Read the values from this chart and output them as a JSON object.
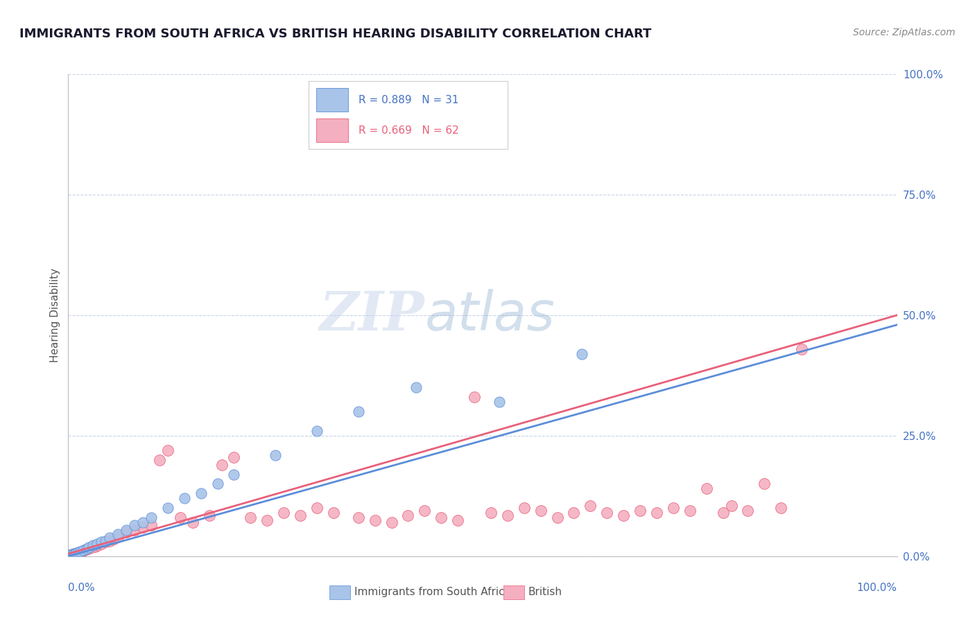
{
  "title": "IMMIGRANTS FROM SOUTH AFRICA VS BRITISH HEARING DISABILITY CORRELATION CHART",
  "source": "Source: ZipAtlas.com",
  "ylabel": "Hearing Disability",
  "yaxis_values": [
    0,
    25,
    50,
    75,
    100
  ],
  "legend_blue_r": "R = 0.889",
  "legend_blue_n": "N = 31",
  "legend_pink_r": "R = 0.669",
  "legend_pink_n": "N = 62",
  "blue_color": "#a8c4e8",
  "pink_color": "#f4afc0",
  "blue_line_color": "#5b8dd9",
  "pink_line_color": "#e8607a",
  "blue_scatter": [
    [
      0.2,
      0.3
    ],
    [
      0.4,
      0.4
    ],
    [
      0.6,
      0.5
    ],
    [
      0.8,
      0.6
    ],
    [
      1.0,
      0.7
    ],
    [
      1.2,
      0.8
    ],
    [
      1.5,
      1.0
    ],
    [
      1.8,
      1.2
    ],
    [
      2.2,
      1.5
    ],
    [
      2.5,
      1.8
    ],
    [
      3.0,
      2.2
    ],
    [
      3.5,
      2.5
    ],
    [
      4.0,
      3.0
    ],
    [
      4.5,
      3.2
    ],
    [
      5.0,
      3.8
    ],
    [
      6.0,
      4.5
    ],
    [
      7.0,
      5.5
    ],
    [
      8.0,
      6.5
    ],
    [
      9.0,
      7.0
    ],
    [
      10.0,
      8.0
    ],
    [
      12.0,
      10.0
    ],
    [
      14.0,
      12.0
    ],
    [
      16.0,
      13.0
    ],
    [
      18.0,
      15.0
    ],
    [
      20.0,
      17.0
    ],
    [
      25.0,
      21.0
    ],
    [
      30.0,
      26.0
    ],
    [
      35.0,
      30.0
    ],
    [
      42.0,
      35.0
    ],
    [
      52.0,
      32.0
    ],
    [
      62.0,
      42.0
    ]
  ],
  "pink_scatter": [
    [
      0.2,
      0.2
    ],
    [
      0.4,
      0.3
    ],
    [
      0.6,
      0.4
    ],
    [
      0.8,
      0.5
    ],
    [
      1.0,
      0.6
    ],
    [
      1.3,
      0.8
    ],
    [
      1.6,
      1.0
    ],
    [
      2.0,
      1.2
    ],
    [
      2.4,
      1.5
    ],
    [
      2.8,
      1.8
    ],
    [
      3.2,
      2.0
    ],
    [
      3.6,
      2.2
    ],
    [
      4.0,
      2.5
    ],
    [
      4.5,
      3.0
    ],
    [
      5.0,
      3.2
    ],
    [
      5.5,
      3.5
    ],
    [
      6.0,
      4.0
    ],
    [
      7.0,
      5.0
    ],
    [
      8.0,
      5.5
    ],
    [
      9.0,
      6.0
    ],
    [
      10.0,
      6.5
    ],
    [
      11.0,
      20.0
    ],
    [
      12.0,
      22.0
    ],
    [
      13.5,
      8.0
    ],
    [
      15.0,
      7.0
    ],
    [
      17.0,
      8.5
    ],
    [
      18.5,
      19.0
    ],
    [
      20.0,
      20.5
    ],
    [
      22.0,
      8.0
    ],
    [
      24.0,
      7.5
    ],
    [
      26.0,
      9.0
    ],
    [
      28.0,
      8.5
    ],
    [
      30.0,
      10.0
    ],
    [
      32.0,
      9.0
    ],
    [
      35.0,
      8.0
    ],
    [
      37.0,
      7.5
    ],
    [
      39.0,
      7.0
    ],
    [
      41.0,
      8.5
    ],
    [
      43.0,
      9.5
    ],
    [
      45.0,
      8.0
    ],
    [
      47.0,
      7.5
    ],
    [
      49.0,
      33.0
    ],
    [
      51.0,
      9.0
    ],
    [
      53.0,
      8.5
    ],
    [
      55.0,
      10.0
    ],
    [
      57.0,
      9.5
    ],
    [
      59.0,
      8.0
    ],
    [
      61.0,
      9.0
    ],
    [
      63.0,
      10.5
    ],
    [
      65.0,
      9.0
    ],
    [
      67.0,
      8.5
    ],
    [
      69.0,
      9.5
    ],
    [
      71.0,
      9.0
    ],
    [
      73.0,
      10.0
    ],
    [
      75.0,
      9.5
    ],
    [
      77.0,
      14.0
    ],
    [
      79.0,
      9.0
    ],
    [
      80.0,
      10.5
    ],
    [
      82.0,
      9.5
    ],
    [
      84.0,
      15.0
    ],
    [
      86.0,
      10.0
    ],
    [
      88.5,
      43.0
    ]
  ],
  "blue_line": [
    [
      0,
      0
    ],
    [
      100,
      48
    ]
  ],
  "pink_line": [
    [
      0,
      0.5
    ],
    [
      100,
      50
    ]
  ],
  "background_color": "#ffffff",
  "grid_color": "#c8d4e8",
  "watermark_zip": "ZIP",
  "watermark_atlas": "atlas",
  "xlim": [
    0,
    100
  ],
  "ylim": [
    0,
    100
  ],
  "title_fontsize": 13,
  "source_fontsize": 10,
  "legend_fontsize": 11,
  "axis_label_fontsize": 11,
  "tick_label_fontsize": 11
}
